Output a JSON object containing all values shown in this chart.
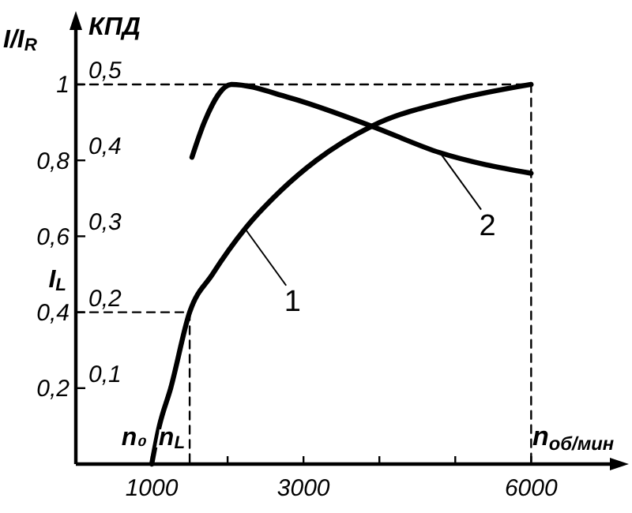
{
  "chart_data": {
    "type": "line",
    "ylabel": "I/I$_{R}$",
    "y2label": "КПД",
    "xlabel": "n$_{об/мин}$",
    "xlim": [
      0,
      7100
    ],
    "xticks": [
      1000,
      {
        "value": 2000,
        "label": null
      },
      3000,
      {
        "value": 4000,
        "label": null
      },
      {
        "value": 5000,
        "label": null
      },
      6000
    ],
    "ylim": [
      0,
      1.16
    ],
    "yticks": [
      {
        "value": 0.2,
        "label": "0,2"
      },
      {
        "value": 0.4,
        "label": "0,4"
      },
      {
        "value": 0.6,
        "label": "0,6"
      },
      {
        "value": 0.8,
        "label": "0,8"
      },
      1
    ],
    "y2lim": [
      0,
      0.58
    ],
    "y2ticks": [
      {
        "value": 0.1,
        "label": "0,1"
      },
      {
        "value": 0.2,
        "label": "0,2"
      },
      {
        "value": 0.3,
        "label": "0,3"
      },
      {
        "value": 0.4,
        "label": "0,4"
      },
      {
        "value": 0.5,
        "label": "0,5"
      }
    ],
    "series": [
      {
        "color": "#000000",
        "x": [
          1000,
          1100,
          1250,
          1500,
          1800,
          2230,
          2700,
          3170,
          3900,
          5000,
          6000
        ],
        "values": [
          0,
          0.1,
          0.2,
          0.4,
          0.5,
          0.62,
          0.72,
          0.8,
          0.89,
          0.96,
          1
        ]
      },
      {
        "color": "#000000",
        "axis": "y2",
        "x": [
          1530,
          1700,
          2050,
          2800,
          3900,
          4800,
          6000
        ],
        "values": [
          0.404,
          0.452,
          0.5,
          0.483,
          0.445,
          0.41,
          0.383
        ]
      },
      {
        "color": "#000000",
        "line_style": "dashed",
        "x": [
          0,
          6000,
          6000
        ],
        "values": [
          1,
          1,
          0
        ]
      },
      {
        "color": "#000000",
        "line_style": "dashed",
        "x": [
          0,
          1500,
          1500
        ],
        "values": [
          0.4,
          0.4,
          0
        ]
      }
    ],
    "annotations": [
      {
        "text": "1",
        "x": 2230,
        "y": 0.62
      },
      {
        "text": "2",
        "x": 4800,
        "y": 0.82
      },
      {
        "text": "n₀",
        "x": 1000,
        "y": 0
      },
      {
        "text": "n$_{L}$",
        "x": 1500,
        "y": 0
      },
      {
        "text": "I$_{L}$",
        "x": 0,
        "y": 0.4
      }
    ]
  }
}
